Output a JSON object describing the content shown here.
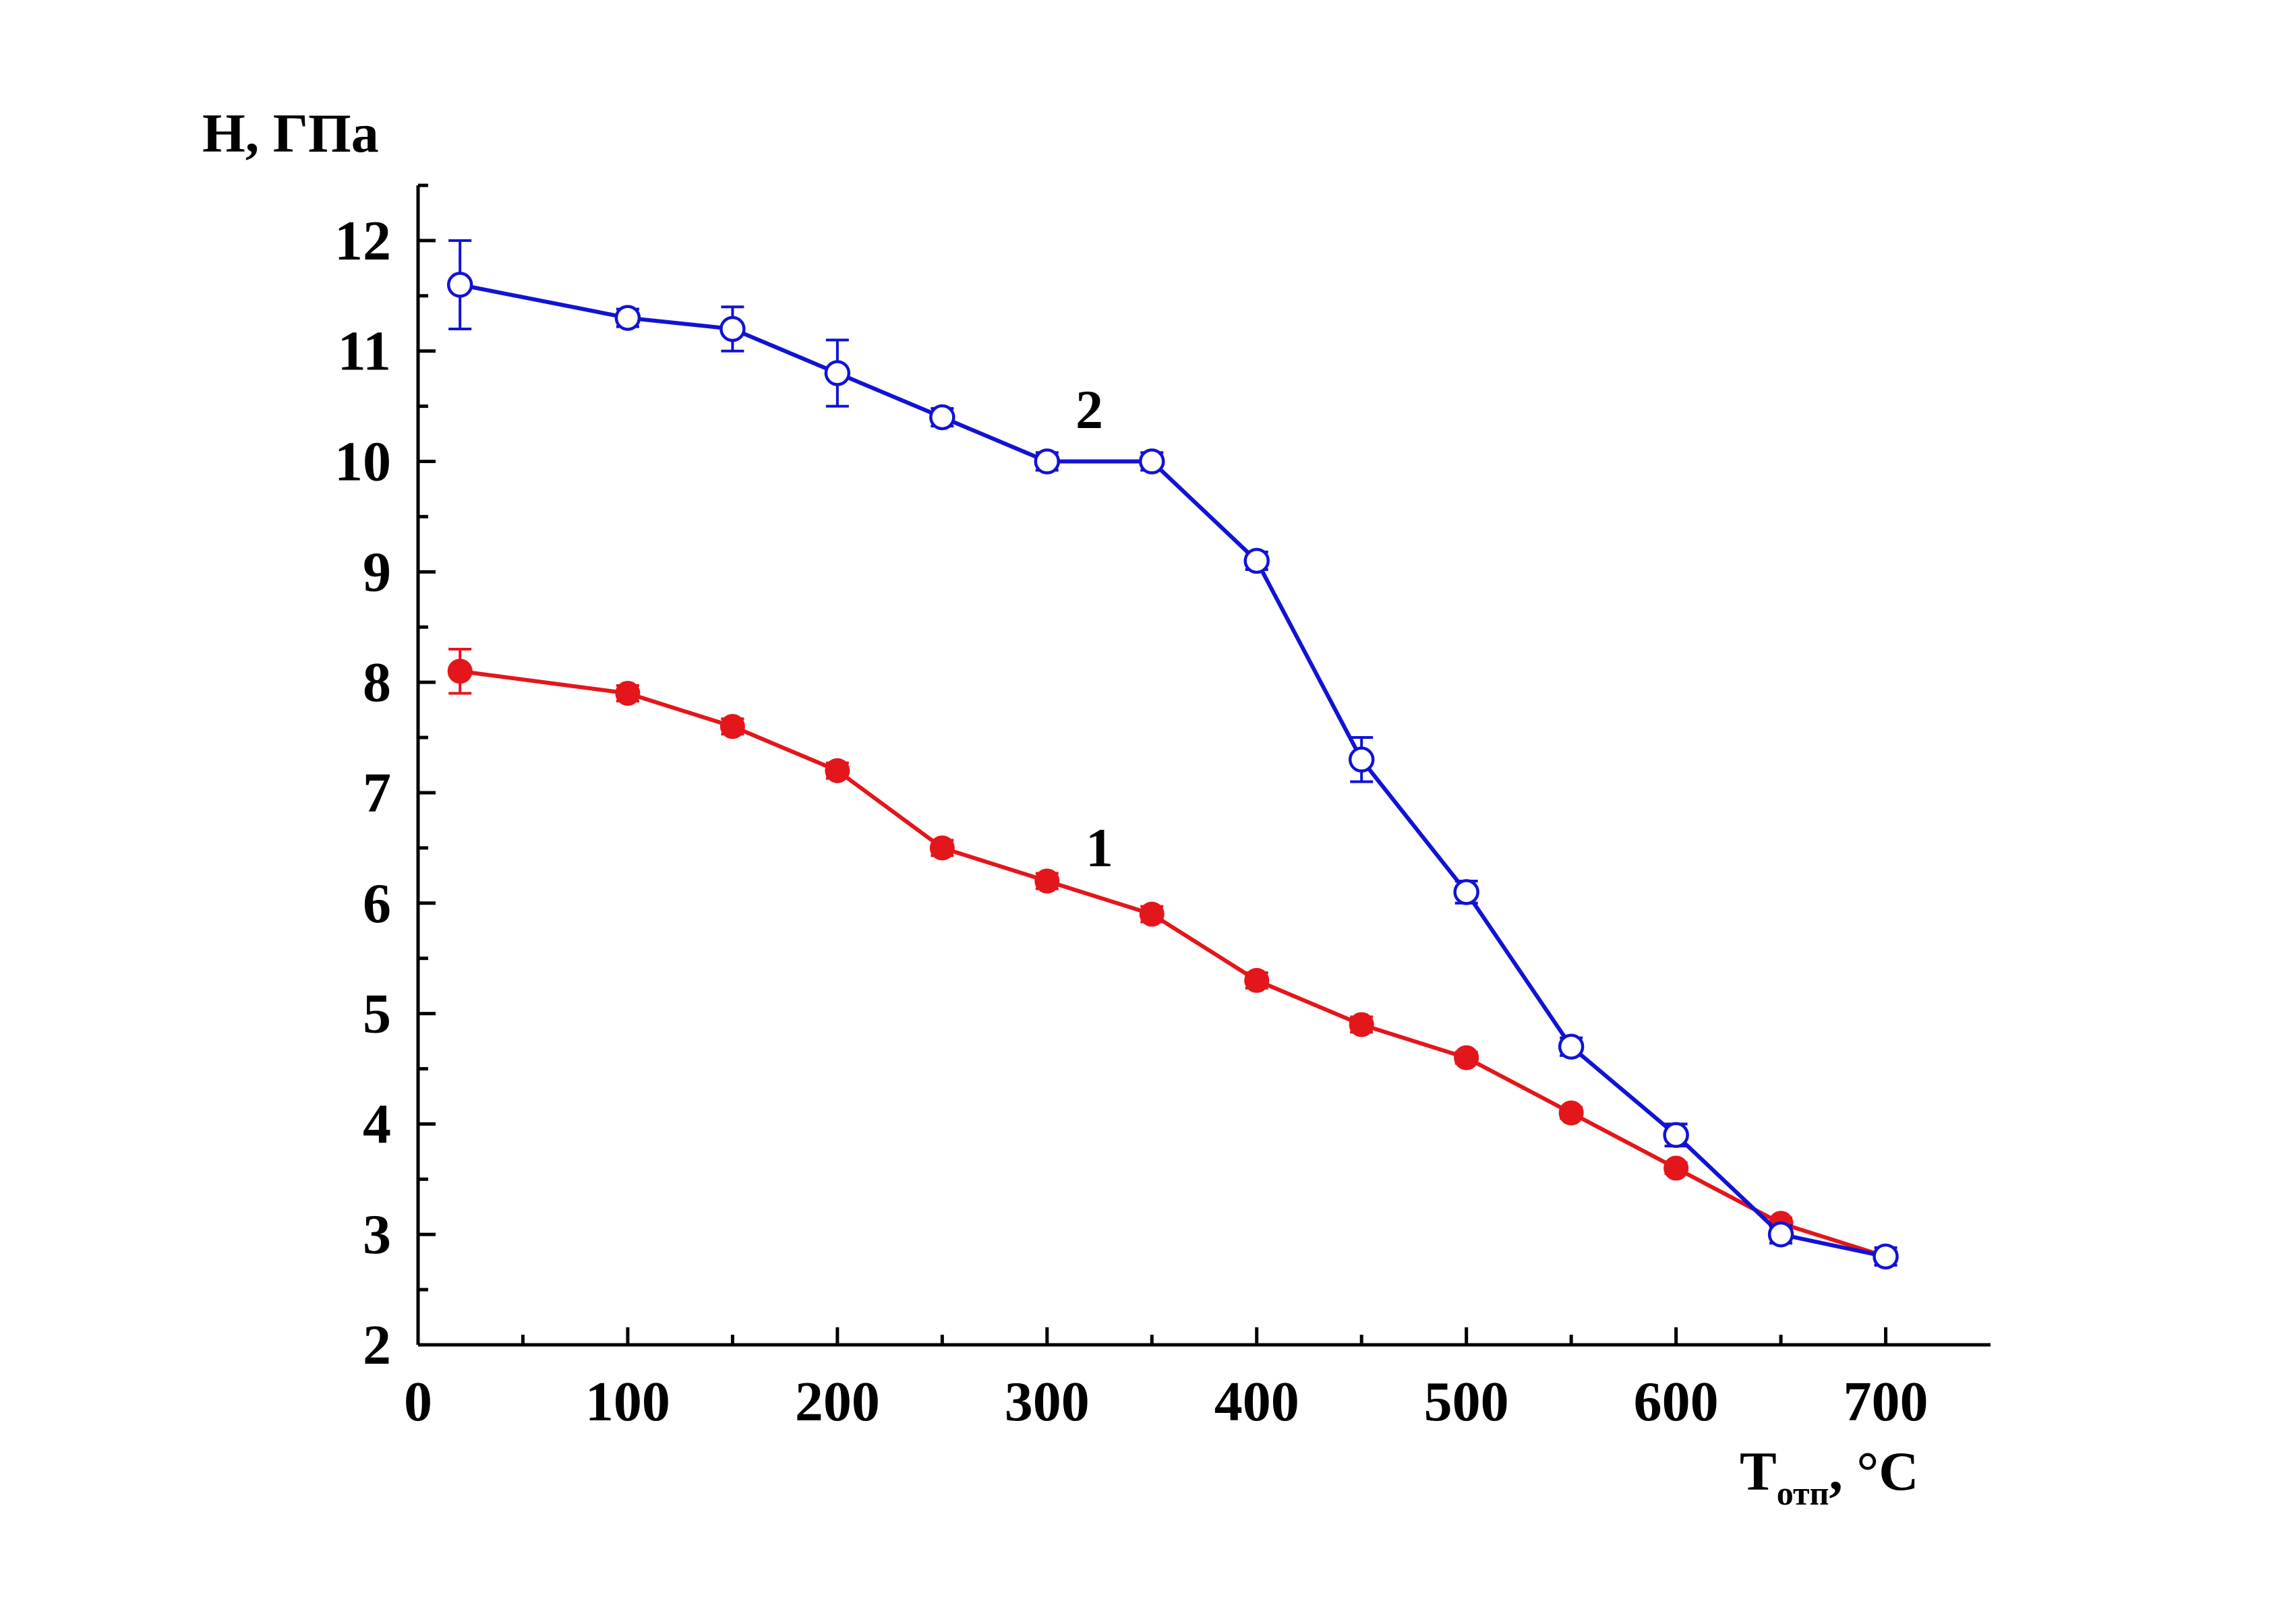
{
  "chart_data": {
    "type": "line",
    "xlabel": {
      "main": "T",
      "sub": "отп",
      "rest": ", °C"
    },
    "ylabel": "H, ГПа",
    "xlim": [
      0,
      750
    ],
    "ylim": [
      2,
      12.5
    ],
    "xticks": [
      0,
      100,
      200,
      300,
      400,
      500,
      600,
      700
    ],
    "xtick_labels": [
      "0",
      "100",
      "200",
      "300",
      "400",
      "500",
      "600",
      "700"
    ],
    "yticks": [
      2,
      3,
      4,
      5,
      6,
      7,
      8,
      9,
      10,
      11,
      12
    ],
    "ytick_labels": [
      "2",
      "3",
      "4",
      "5",
      "6",
      "7",
      "8",
      "9",
      "10",
      "11",
      "12"
    ],
    "grid": false,
    "series": [
      {
        "label": "1",
        "color": "#e3161b",
        "marker": "filled-circle",
        "x": [
          20,
          100,
          150,
          200,
          250,
          300,
          350,
          400,
          450,
          500,
          550,
          600,
          650,
          700
        ],
        "y": [
          8.1,
          7.9,
          7.6,
          7.2,
          6.5,
          6.2,
          5.9,
          5.3,
          4.9,
          4.6,
          4.1,
          3.6,
          3.1,
          2.8
        ],
        "err": [
          0.2,
          0.07,
          0.07,
          0.07,
          0.07,
          0.07,
          0.07,
          0.07,
          0.07,
          0.05,
          0.05,
          0.05,
          0.05,
          0.05
        ]
      },
      {
        "label": "2",
        "color": "#1212d4",
        "marker": "open-circle",
        "x": [
          20,
          100,
          150,
          200,
          250,
          300,
          350,
          400,
          450,
          500,
          550,
          600,
          650,
          700
        ],
        "y": [
          11.6,
          11.3,
          11.2,
          10.8,
          10.4,
          10.0,
          10.0,
          9.1,
          7.3,
          6.1,
          4.7,
          3.9,
          3.0,
          2.8
        ],
        "err": [
          0.4,
          0.08,
          0.2,
          0.3,
          0.08,
          0.08,
          0.08,
          0.08,
          0.2,
          0.1,
          0.08,
          0.1,
          0.08,
          0.08
        ]
      }
    ]
  }
}
